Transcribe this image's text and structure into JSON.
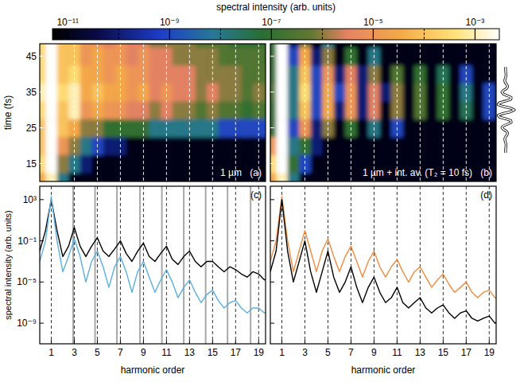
{
  "chart_data": [
    {
      "type": "heatmap",
      "panel_label": "(a)",
      "annotation": "1 µm",
      "x": [
        0,
        1,
        2,
        3,
        4,
        5,
        6,
        7,
        8,
        9,
        10,
        11,
        12,
        13,
        14,
        15,
        16,
        17,
        18,
        19,
        20
      ],
      "y": [
        10,
        15,
        20,
        25,
        30,
        35,
        40,
        45,
        50
      ],
      "z": [
        [
          3e-05,
          0.001,
          1e-08,
          1e-11,
          1e-11,
          1e-11,
          1e-11,
          1e-11,
          1e-11,
          1e-11,
          1e-11,
          1e-11,
          1e-11,
          1e-11,
          1e-11,
          1e-11,
          1e-11,
          1e-11,
          1e-11,
          1e-11,
          1e-11
        ],
        [
          0.0003,
          0.003,
          1e-06,
          1e-08,
          1e-10,
          1e-11,
          1e-11,
          1e-11,
          1e-11,
          1e-11,
          1e-11,
          1e-11,
          1e-11,
          1e-11,
          1e-11,
          1e-11,
          1e-11,
          1e-11,
          1e-11,
          1e-11,
          1e-11
        ],
        [
          0.0001,
          0.003,
          1e-05,
          1e-06,
          1e-08,
          1e-09,
          1e-10,
          1e-10,
          1e-11,
          1e-11,
          1e-11,
          1e-11,
          1e-11,
          1e-11,
          1e-11,
          1e-11,
          1e-11,
          1e-11,
          1e-11,
          1e-11,
          1e-11
        ],
        [
          0.0001,
          0.003,
          0.0001,
          3e-05,
          1e-06,
          1e-06,
          1e-07,
          1e-07,
          1e-07,
          1e-07,
          1e-08,
          1e-08,
          1e-08,
          1e-08,
          1e-08,
          1e-08,
          1e-09,
          1e-09,
          1e-09,
          1e-09,
          1e-09
        ],
        [
          0.0003,
          0.003,
          0.0001,
          0.001,
          1e-05,
          3e-05,
          1e-05,
          1e-05,
          3e-06,
          3e-06,
          1e-06,
          3e-06,
          1e-06,
          1e-06,
          3e-07,
          1e-06,
          3e-07,
          3e-07,
          1e-07,
          3e-07,
          1e-07
        ],
        [
          0.001,
          0.003,
          0.0003,
          0.001,
          3e-05,
          0.0001,
          3e-05,
          3e-05,
          1e-05,
          3e-05,
          3e-06,
          1e-05,
          3e-06,
          3e-06,
          1e-06,
          3e-06,
          1e-06,
          1e-06,
          3e-07,
          1e-06,
          3e-07
        ],
        [
          0.0003,
          0.003,
          0.0001,
          0.0003,
          3e-05,
          3e-05,
          1e-05,
          3e-05,
          1e-05,
          1e-05,
          3e-06,
          3e-06,
          3e-06,
          3e-06,
          1e-06,
          1e-06,
          1e-06,
          1e-06,
          3e-07,
          3e-07,
          3e-07
        ],
        [
          0.0003,
          0.003,
          0.0001,
          0.0001,
          1e-05,
          3e-05,
          1e-05,
          1e-05,
          3e-06,
          1e-05,
          3e-06,
          3e-06,
          1e-06,
          1e-06,
          1e-06,
          1e-06,
          3e-07,
          3e-07,
          3e-07,
          3e-07,
          1e-07
        ],
        [
          0.0003,
          0.003,
          0.0001,
          0.0001,
          1e-05,
          1e-05,
          3e-06,
          1e-05,
          3e-06,
          3e-06,
          1e-06,
          1e-06,
          1e-06,
          1e-06,
          3e-07,
          3e-07,
          3e-07,
          1e-07,
          1e-07,
          1e-07,
          1e-07
        ]
      ],
      "xlim": [
        0,
        19.6
      ],
      "ylim": [
        10,
        48.5
      ],
      "xticks": [
        1,
        3,
        5,
        7,
        9,
        11,
        13,
        15,
        17,
        19
      ],
      "yticks": [
        15,
        25,
        35,
        45
      ],
      "y_label": "time (fs)",
      "grid": true,
      "tick_labels": "y",
      "colorbar": {
        "title": "spectral intensity (arb. units)",
        "range": [
          5e-12,
          0.003
        ],
        "ticks": [
          {
            "value": 1e-11,
            "label": "10⁻¹¹"
          },
          {
            "value": 1e-09,
            "label": "10⁻⁹"
          },
          {
            "value": 1e-07,
            "label": "10⁻⁷"
          },
          {
            "value": 1e-05,
            "label": "10⁻⁵"
          },
          {
            "value": 0.001,
            "label": "10⁻³"
          }
        ],
        "minor_ticks": [
          1e-10,
          1e-08,
          1e-06,
          0.0001
        ]
      }
    },
    {
      "type": "heatmap",
      "panel_label": "(b)",
      "annotation": "1 µm + int. av. (T₂ = 10 fs)",
      "x": [
        0,
        1,
        2,
        3,
        4,
        5,
        6,
        7,
        8,
        9,
        10,
        11,
        12,
        13,
        14,
        15,
        16,
        17,
        18,
        19,
        20
      ],
      "y": [
        10,
        15,
        20,
        25,
        30,
        35,
        40,
        45,
        50
      ],
      "z": [
        [
          3e-05,
          0.001,
          1e-08,
          1e-11,
          1e-11,
          1e-11,
          1e-11,
          1e-11,
          1e-11,
          1e-11,
          1e-11,
          1e-11,
          1e-11,
          1e-11,
          1e-11,
          1e-11,
          1e-11,
          1e-11,
          1e-11,
          1e-11,
          1e-11
        ],
        [
          0.0003,
          0.003,
          1e-07,
          1e-09,
          1e-11,
          1e-11,
          1e-11,
          1e-11,
          1e-11,
          1e-11,
          1e-11,
          1e-11,
          1e-11,
          1e-11,
          1e-11,
          1e-11,
          1e-11,
          1e-11,
          1e-11,
          1e-11,
          1e-11
        ],
        [
          1e-05,
          0.003,
          1e-08,
          1e-07,
          1e-10,
          1e-11,
          1e-11,
          1e-11,
          1e-11,
          1e-11,
          1e-11,
          1e-11,
          1e-11,
          1e-11,
          1e-11,
          1e-11,
          1e-11,
          1e-11,
          1e-11,
          1e-11,
          1e-11
        ],
        [
          1e-07,
          0.003,
          1e-09,
          1e-05,
          1e-10,
          1e-06,
          1e-11,
          1e-07,
          1e-11,
          1e-08,
          1e-11,
          1e-09,
          1e-11,
          1e-11,
          1e-11,
          1e-11,
          1e-11,
          1e-11,
          1e-11,
          1e-11,
          1e-11
        ],
        [
          1e-07,
          0.003,
          1e-08,
          0.0001,
          1e-09,
          3e-05,
          1e-10,
          1e-05,
          1e-10,
          3e-06,
          1e-11,
          1e-06,
          1e-11,
          3e-07,
          1e-11,
          1e-07,
          1e-11,
          3e-08,
          1e-11,
          1e-09,
          1e-11
        ],
        [
          3e-07,
          0.003,
          1e-08,
          0.0003,
          1e-09,
          3e-05,
          1e-09,
          1e-05,
          1e-10,
          3e-06,
          1e-10,
          1e-06,
          1e-11,
          3e-07,
          1e-11,
          1e-07,
          1e-11,
          1e-08,
          1e-11,
          1e-09,
          1e-11
        ],
        [
          1e-07,
          0.003,
          1e-08,
          0.0001,
          1e-09,
          1e-05,
          1e-10,
          3e-06,
          1e-10,
          1e-06,
          1e-11,
          3e-07,
          1e-11,
          1e-07,
          1e-11,
          3e-08,
          1e-11,
          1e-09,
          1e-11,
          1e-11,
          1e-11
        ],
        [
          1e-07,
          0.003,
          1e-09,
          3e-05,
          1e-10,
          1e-06,
          1e-11,
          1e-07,
          1e-11,
          1e-08,
          1e-11,
          1e-11,
          1e-11,
          1e-11,
          1e-11,
          1e-11,
          1e-11,
          1e-11,
          1e-11,
          1e-11,
          1e-11
        ],
        [
          1e-07,
          0.003,
          1e-10,
          1e-06,
          1e-11,
          1e-08,
          1e-11,
          1e-11,
          1e-11,
          1e-11,
          1e-11,
          1e-11,
          1e-11,
          1e-11,
          1e-11,
          1e-11,
          1e-11,
          1e-11,
          1e-11,
          1e-11,
          1e-11
        ]
      ],
      "xlim": [
        0,
        19.6
      ],
      "ylim": [
        10,
        48.5
      ],
      "xticks": [
        1,
        3,
        5,
        7,
        9,
        11,
        13,
        15,
        17,
        19
      ],
      "yticks": [
        15,
        25,
        35,
        45
      ],
      "grid": true,
      "tick_labels": false,
      "field": {
        "color": "#ffffff",
        "t": [
          18,
          18.5,
          19,
          19.5,
          20,
          20.5,
          21,
          21.5,
          22,
          22.5,
          23,
          23.5,
          24,
          24.5,
          25,
          25.5,
          26,
          26.5,
          27,
          27.5,
          28,
          28.5,
          29,
          29.5,
          30,
          30.5,
          31,
          31.5,
          32,
          32.5,
          33,
          33.5,
          34,
          34.5,
          35,
          35.5,
          36,
          36.5,
          37,
          37.5,
          38,
          38.5,
          39,
          39.5,
          40,
          40.5,
          41,
          41.5,
          42
        ],
        "values": [
          -0.01,
          -0.01,
          -0.01,
          0.01,
          0.04,
          0.03,
          -0.02,
          -0.09,
          -0.1,
          0,
          0.16,
          0.23,
          0.1,
          -0.21,
          -0.44,
          -0.3,
          0.18,
          0.63,
          0.6,
          0,
          -0.71,
          -0.88,
          -0.3,
          0.58,
          1,
          0.58,
          -0.3,
          -0.88,
          -0.71,
          0,
          0.6,
          0.63,
          0.18,
          -0.3,
          -0.44,
          -0.21,
          0.1,
          0.23,
          0.16,
          0,
          -0.1,
          -0.09,
          -0.02,
          0.03,
          0.04,
          0.01,
          -0.01,
          -0.01,
          -0.01
        ]
      }
    },
    {
      "type": "line",
      "panel_label": "(c)",
      "x": [
        0,
        0.5,
        1,
        1.5,
        2,
        2.5,
        3,
        3.5,
        4,
        4.5,
        5,
        5.5,
        6,
        6.5,
        7,
        7.5,
        8,
        8.5,
        9,
        9.5,
        10,
        10.5,
        11,
        11.5,
        12,
        12.5,
        13,
        13.5,
        14,
        14.5,
        15,
        15.5,
        16,
        16.5,
        17,
        17.5,
        18,
        18.5,
        19,
        19.5,
        20
      ],
      "series": [
        {
          "color": "#000000",
          "values": [
            0.01,
            1,
            1000,
            1,
            0.003,
            0.03,
            2,
            0.03,
            0.003,
            0.03,
            0.2,
            0.01,
            0.003,
            0.016,
            0.1,
            0.006,
            0.001,
            0.01,
            0.06,
            0.003,
            0.001,
            0.006,
            0.03,
            0.0016,
            0.0005,
            0.003,
            0.01,
            0.001,
            0.0003,
            0.001,
            0.001,
            0.0003,
            0.0001,
            0.0003,
            0.00016,
            6e-05,
            3e-05,
            0.0001,
            6e-05,
            1.6e-05,
            3e-05
          ]
        },
        {
          "color": "#5aaee0",
          "values": [
            0.001,
            0.1,
            2000,
            0.1,
            0.0001,
            0.003,
            0.16,
            0.003,
            1e-05,
            0.001,
            0.01,
            0.0003,
            3e-06,
            0.0003,
            0.003,
            0.0001,
            1e-06,
            0.0001,
            0.001,
            3e-05,
            1e-06,
            1.6e-05,
            0.00016,
            1e-05,
            3e-07,
            3e-06,
            1.6e-05,
            1e-06,
            1e-07,
            6e-07,
            1.6e-06,
            1.6e-07,
            3e-08,
            1e-07,
            1.6e-07,
            3e-08,
            1e-08,
            3e-08,
            3e-08,
            1e-08,
            1.6e-08
          ]
        }
      ],
      "reference_lines": {
        "color": "#a8a8a8",
        "values": [
          2.9,
          4.8,
          6.7,
          8.7,
          10.6,
          12.5,
          14.4,
          16.3,
          18.3
        ]
      },
      "xlim": [
        0,
        19.6
      ],
      "ylim": [
        1e-11,
        20000.0
      ],
      "log": "y",
      "xticks": [
        1,
        3,
        5,
        7,
        9,
        11,
        13,
        15,
        17,
        19
      ],
      "yticks": [
        {
          "value": 1000,
          "label": "10³"
        },
        {
          "value": 0.1,
          "label": "10⁻¹"
        },
        {
          "value": 1e-05,
          "label": "10⁻⁵"
        },
        {
          "value": 1e-09,
          "label": "10⁻⁹"
        }
      ],
      "x_label": "harmonic order",
      "y_label": "spectral intensity (arb. units)",
      "grid": true
    },
    {
      "type": "line",
      "panel_label": "(d)",
      "x": [
        0,
        0.5,
        1,
        1.5,
        2,
        2.5,
        3,
        3.5,
        4,
        4.5,
        5,
        5.5,
        6,
        6.5,
        7,
        7.5,
        8,
        8.5,
        9,
        9.5,
        10,
        10.5,
        11,
        11.5,
        12,
        12.5,
        13,
        13.5,
        14,
        14.5,
        15,
        15.5,
        16,
        16.5,
        17,
        17.5,
        18,
        18.5,
        19,
        19.5,
        20
      ],
      "series": [
        {
          "color": "#f08a3c",
          "values": [
            0.001,
            0.1,
            2000,
            0.1,
            0.0001,
            0.01,
            1,
            0.01,
            0.0001,
            0.01,
            0.16,
            0.003,
            0.0001,
            0.003,
            0.03,
            0.001,
            3e-05,
            0.001,
            0.01,
            0.0003,
            3e-05,
            0.0003,
            0.0016,
            0.0001,
            1e-05,
            0.0001,
            0.0003,
            3e-05,
            3e-06,
            1.6e-05,
            6e-05,
            6e-06,
            1e-06,
            3e-06,
            1e-05,
            1e-06,
            3e-07,
            1e-06,
            1.6e-06,
            3e-07,
            3e-07
          ]
        },
        {
          "color": "#000000",
          "values": [
            0.0001,
            0.01,
            1000,
            0.01,
            1e-05,
            0.001,
            0.1,
            0.0001,
            1e-06,
            0.0001,
            0.01,
            3e-05,
            1e-06,
            1e-05,
            0.0003,
            3e-06,
            1e-07,
            3e-06,
            3e-05,
            1e-06,
            1e-07,
            3e-07,
            3e-06,
            1e-07,
            3e-08,
            1e-07,
            3e-07,
            3e-08,
            1e-08,
            3e-08,
            6e-08,
            1e-08,
            3e-09,
            1e-08,
            1.6e-08,
            3e-09,
            1.6e-09,
            3e-09,
            5e-09,
            1e-09,
            3e-09
          ]
        }
      ],
      "xlim": [
        0,
        19.6
      ],
      "ylim": [
        1e-11,
        20000.0
      ],
      "log": "y",
      "xticks": [
        1,
        3,
        5,
        7,
        9,
        11,
        13,
        15,
        17,
        19
      ],
      "yticks": [
        {
          "value": 1000,
          "label": "10³"
        },
        {
          "value": 0.1,
          "label": "10⁻¹"
        },
        {
          "value": 1e-05,
          "label": "10⁻⁵"
        },
        {
          "value": 1e-09,
          "label": "10⁻⁹"
        }
      ],
      "x_label": "harmonic order",
      "grid": true,
      "tick_labels": "x"
    }
  ]
}
